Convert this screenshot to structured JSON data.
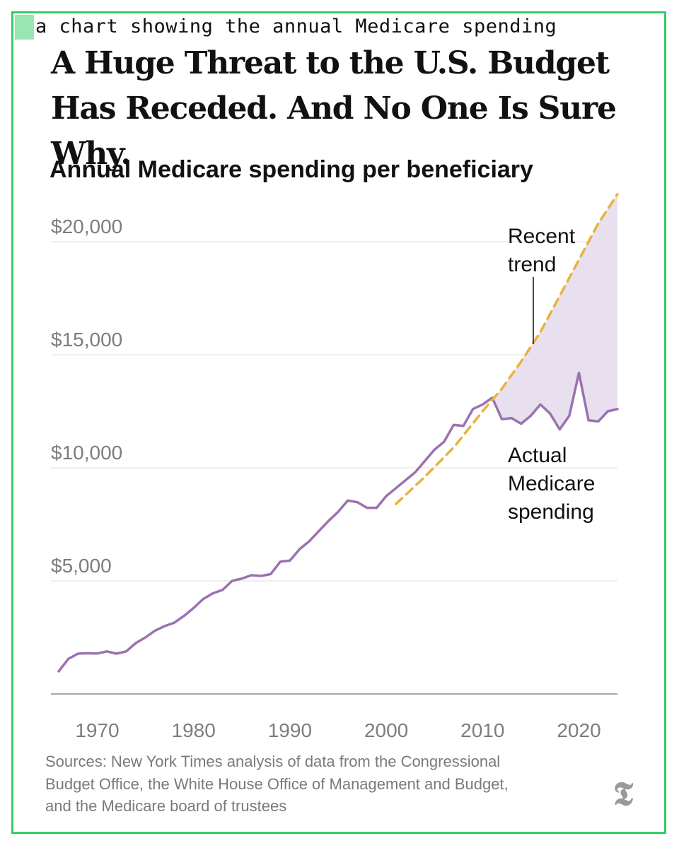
{
  "caption": "a chart showing the annual Medicare spending",
  "headline": "A Huge Threat to the U.S. Budget Has Receded. And No One Is Sure Why.",
  "chart_data": {
    "type": "line",
    "title": "Annual Medicare spending per beneficiary",
    "xlabel": "",
    "ylabel": "",
    "xlim": [
      1966,
      2024
    ],
    "ylim": [
      0,
      22000
    ],
    "x_ticks": [
      1970,
      1980,
      1990,
      2000,
      2010,
      2020
    ],
    "x_tick_labels": [
      "1970",
      "1980",
      "1990",
      "2000",
      "2010",
      "2020"
    ],
    "y_ticks": [
      5000,
      10000,
      15000,
      20000
    ],
    "y_tick_labels": [
      "$5,000",
      "$10,000",
      "$15,000",
      "$20,000"
    ],
    "grid": true,
    "legend": "none",
    "series": [
      {
        "name": "Actual Medicare spending",
        "color": "#9b72b0",
        "x": [
          1966,
          1967,
          1968,
          1969,
          1970,
          1971,
          1972,
          1973,
          1974,
          1975,
          1976,
          1977,
          1978,
          1979,
          1980,
          1981,
          1982,
          1983,
          1984,
          1985,
          1986,
          1987,
          1988,
          1989,
          1990,
          1991,
          1992,
          1993,
          1994,
          1995,
          1996,
          1997,
          1998,
          1999,
          2000,
          2001,
          2002,
          2003,
          2004,
          2005,
          2006,
          2007,
          2008,
          2009,
          2010,
          2011,
          2012,
          2013,
          2014,
          2015,
          2016,
          2017,
          2018,
          2019,
          2020,
          2021,
          2022,
          2023,
          2024
        ],
        "values": [
          1000,
          1550,
          1780,
          1800,
          1790,
          1880,
          1780,
          1880,
          2250,
          2500,
          2800,
          3000,
          3150,
          3450,
          3800,
          4200,
          4450,
          4600,
          5000,
          5100,
          5250,
          5220,
          5300,
          5850,
          5900,
          6400,
          6750,
          7200,
          7650,
          8050,
          8550,
          8480,
          8230,
          8230,
          8750,
          9100,
          9450,
          9800,
          10300,
          10800,
          11150,
          11900,
          11850,
          12600,
          12800,
          13100,
          12150,
          12200,
          11950,
          12300,
          12800,
          12400,
          11700,
          12300,
          14200,
          12100,
          12050,
          12500,
          12600
        ]
      },
      {
        "name": "Recent trend",
        "color": "#e8b33c",
        "x": [
          2001,
          2004,
          2007,
          2010,
          2012,
          2014,
          2016,
          2018,
          2020,
          2022,
          2024
        ],
        "values": [
          8400,
          9600,
          10900,
          12500,
          13500,
          14700,
          16000,
          17600,
          19200,
          20800,
          22100
        ]
      }
    ],
    "fill_between": {
      "from_year": 2011,
      "color": "#e8dfef"
    },
    "annotations": [
      {
        "text_lines": [
          "Recent",
          "trend"
        ],
        "target_series": "Recent trend",
        "target_x": 2015
      },
      {
        "text_lines": [
          "Actual",
          "Medicare",
          "spending"
        ],
        "target_series": "Actual Medicare spending"
      }
    ]
  },
  "sources": {
    "lines": [
      "Sources: New York Times analysis of data from the Congressional",
      "Budget Office, the White House Office of Management and Budget,",
      "and the Medicare board of trustees"
    ]
  },
  "logo": {
    "glyph": "𝕿",
    "icon": "nyt-logo-icon"
  }
}
